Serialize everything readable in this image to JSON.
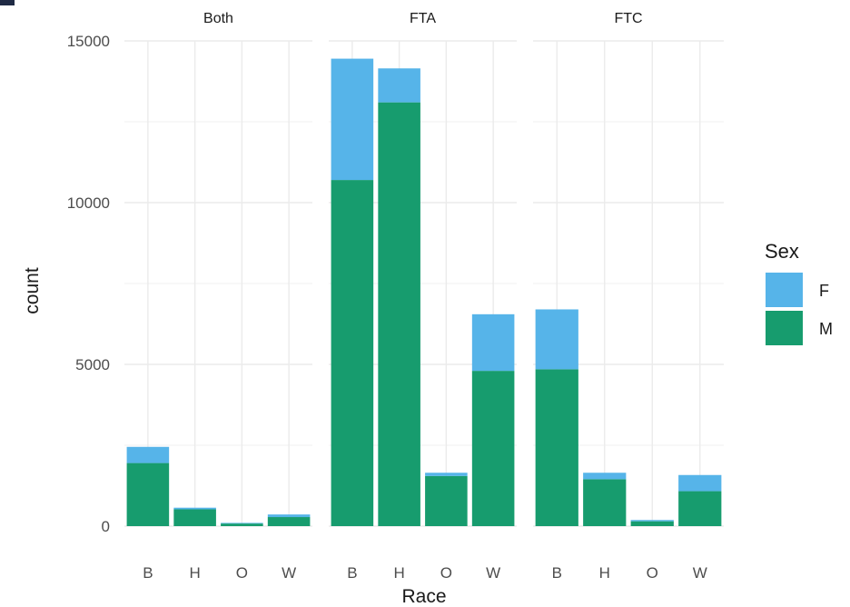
{
  "chart_data": {
    "type": "bar",
    "stacked": true,
    "facets": [
      "Both",
      "FTA",
      "FTC"
    ],
    "categories": [
      "B",
      "H",
      "O",
      "W"
    ],
    "series": [
      {
        "name": "F",
        "color": "#56B4E9",
        "values": {
          "Both": [
            500,
            50,
            20,
            80
          ],
          "FTA": [
            3750,
            1050,
            100,
            1750
          ],
          "FTC": [
            1850,
            200,
            40,
            500
          ]
        }
      },
      {
        "name": "M",
        "color": "#179C6E",
        "values": {
          "Both": [
            1950,
            520,
            80,
            280
          ],
          "FTA": [
            10700,
            13100,
            1550,
            4800
          ],
          "FTC": [
            4850,
            1450,
            150,
            1080
          ]
        }
      }
    ],
    "xlabel": "Race",
    "ylabel": "count",
    "ylim": [
      0,
      15000
    ],
    "yticks": [
      0,
      5000,
      10000,
      15000
    ],
    "grid": true,
    "legend": {
      "title": "Sex",
      "position": "right"
    },
    "gridColor": "#EBEBEB",
    "textColor": "#4d4d4d"
  }
}
